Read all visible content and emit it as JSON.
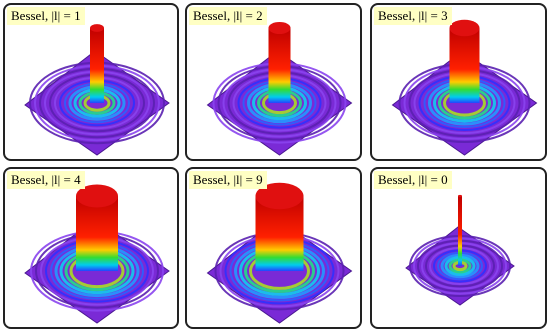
{
  "panels": [
    {
      "label": "Bessel, |l| = 1"
    },
    {
      "label": "Bessel, |l| = 2"
    },
    {
      "label": "Bessel, |l| = 3"
    },
    {
      "label": "Bessel, |l| = 4"
    },
    {
      "label": "Bessel, |l| = 9"
    },
    {
      "label": "Bessel, |l| = 0"
    }
  ]
}
